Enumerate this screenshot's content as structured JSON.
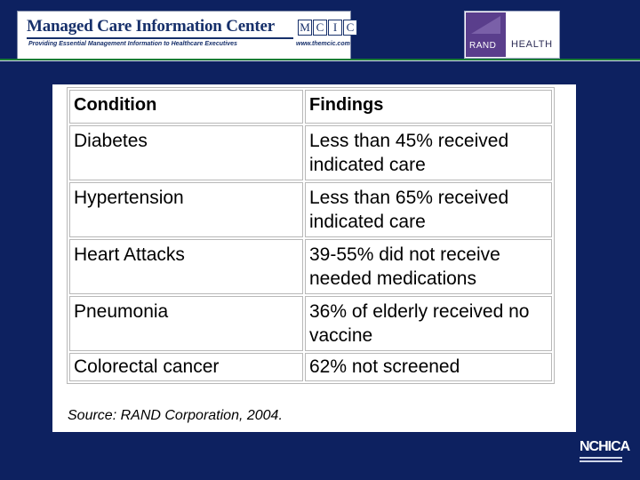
{
  "header": {
    "mcic_title": "Managed Care Information Center",
    "mcic_subtitle": "Providing Essential Management Information to Healthcare Executives",
    "mcic_url": "www.themcic.com",
    "mcic_logo_letters": [
      "M",
      "C",
      "I",
      "C"
    ],
    "rand_label": "RAND",
    "health_label": "HEALTH"
  },
  "table": {
    "headers": [
      "Condition",
      "Findings"
    ],
    "rows": [
      {
        "condition": "Diabetes",
        "finding": "Less than 45% received indicated care"
      },
      {
        "condition": "Hypertension",
        "finding": "Less than 65% received indicated care"
      },
      {
        "condition": "Heart Attacks",
        "finding": "39-55% did not receive needed medications"
      },
      {
        "condition": "Pneumonia",
        "finding": "36% of elderly received no vaccine"
      },
      {
        "condition": "Colorectal cancer",
        "finding": "62% not screened"
      }
    ]
  },
  "source": "Source: RAND Corporation, 2004.",
  "footer_logo": "NCHICA",
  "colors": {
    "background": "#0d2160",
    "banner_text": "#17306b",
    "rand_purple": "#5a3e8c",
    "divider_green": "#1a7d35"
  }
}
